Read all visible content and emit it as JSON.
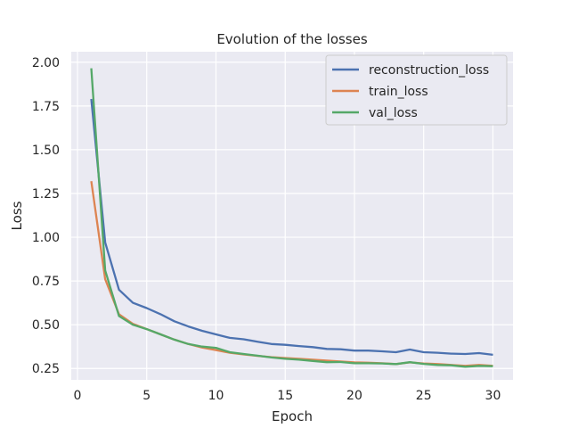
{
  "chart_data": {
    "type": "line",
    "title": "Evolution of the losses",
    "xlabel": "Epoch",
    "ylabel": "Loss",
    "xlim": [
      -0.45,
      31.45
    ],
    "ylim": [
      0.185,
      2.06
    ],
    "xticks": [
      0,
      5,
      10,
      15,
      20,
      25,
      30
    ],
    "xtick_labels": [
      "0",
      "5",
      "10",
      "15",
      "20",
      "25",
      "30"
    ],
    "yticks": [
      0.25,
      0.5,
      0.75,
      1.0,
      1.25,
      1.5,
      1.75,
      2.0
    ],
    "ytick_labels": [
      "0.25",
      "0.50",
      "0.75",
      "1.00",
      "1.25",
      "1.50",
      "1.75",
      "2.00"
    ],
    "grid": true,
    "legend_position": "top-right",
    "x": [
      1,
      2,
      3,
      4,
      5,
      6,
      7,
      8,
      9,
      10,
      11,
      12,
      13,
      14,
      15,
      16,
      17,
      18,
      19,
      20,
      21,
      22,
      23,
      24,
      25,
      26,
      27,
      28,
      29,
      30
    ],
    "series": [
      {
        "name": "reconstruction_loss",
        "color": "#4c72b0",
        "values": [
          1.79,
          0.97,
          0.7,
          0.625,
          0.595,
          0.56,
          0.52,
          0.49,
          0.465,
          0.445,
          0.425,
          0.417,
          0.403,
          0.39,
          0.385,
          0.378,
          0.372,
          0.362,
          0.36,
          0.352,
          0.352,
          0.348,
          0.343,
          0.358,
          0.343,
          0.34,
          0.335,
          0.333,
          0.338,
          0.328
        ]
      },
      {
        "name": "train_loss",
        "color": "#dd8452",
        "values": [
          1.32,
          0.76,
          0.56,
          0.505,
          0.475,
          0.445,
          0.415,
          0.39,
          0.37,
          0.355,
          0.34,
          0.33,
          0.322,
          0.315,
          0.31,
          0.305,
          0.3,
          0.295,
          0.29,
          0.285,
          0.283,
          0.28,
          0.275,
          0.285,
          0.278,
          0.275,
          0.27,
          0.265,
          0.27,
          0.265
        ]
      },
      {
        "name": "val_loss",
        "color": "#55a868",
        "values": [
          1.965,
          0.81,
          0.55,
          0.5,
          0.475,
          0.445,
          0.415,
          0.39,
          0.375,
          0.368,
          0.343,
          0.333,
          0.323,
          0.313,
          0.305,
          0.3,
          0.293,
          0.286,
          0.287,
          0.28,
          0.28,
          0.279,
          0.275,
          0.286,
          0.276,
          0.27,
          0.268,
          0.26,
          0.265,
          0.263
        ]
      }
    ]
  }
}
